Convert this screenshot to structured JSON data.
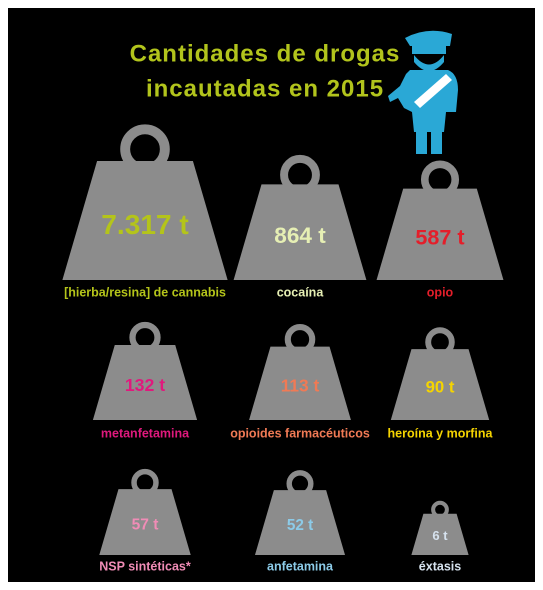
{
  "chart_data": {
    "type": "weights",
    "title_lines": [
      "Cantidades de drogas",
      "incautadas en 2015"
    ],
    "title_color": "#b2c41c",
    "categories": [
      "[hierba/resina] de cannabis",
      "cocaína",
      "opio",
      "metanfetamina",
      "opioides farmacéuticos",
      "heroína y morfina",
      "NSP sintéticas*",
      "anfetamina",
      "éxtasis"
    ],
    "values": [
      7317,
      864,
      587,
      132,
      113,
      90,
      57,
      52,
      6
    ],
    "value_labels": [
      "7.317 t",
      "864 t",
      "587 t",
      "132 t",
      "113 t",
      "90 t",
      "57 t",
      "52 t",
      "6 t"
    ],
    "colors": [
      "#b4c41a",
      "#e6efb4",
      "#e41e2a",
      "#e0197d",
      "#f07a55",
      "#f5d400",
      "#f08cb6",
      "#8ccbe8",
      "#d6e2ee"
    ],
    "weight_color": "#8c8c8c"
  }
}
